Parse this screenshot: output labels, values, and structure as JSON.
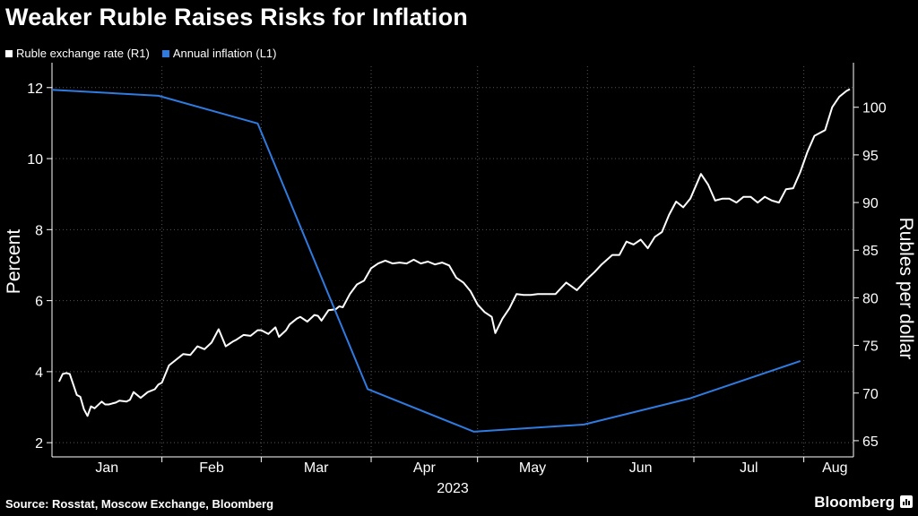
{
  "header": {
    "title": "Weaker Ruble Raises Risks for Inflation"
  },
  "footer": {
    "source": "Source: Rosstat, Moscow Exchange, Bloomberg",
    "brand": "Bloomberg"
  },
  "colors": {
    "background": "#000000",
    "ruble_series": "#ffffff",
    "inflation_series": "#2f7be0",
    "grid": "#555555"
  },
  "chart_data": {
    "type": "line",
    "title": "Weaker Ruble Raises Risks for Inflation",
    "x_axis": {
      "ticks": [
        "Jan",
        "Feb",
        "Mar",
        "Apr",
        "May",
        "Jun",
        "Jul",
        "Aug"
      ],
      "sublabel": "2023",
      "range": [
        "2023-01-01",
        "2023-08-15"
      ]
    },
    "y_left": {
      "label": "Percent",
      "ticks": [
        2,
        4,
        6,
        8,
        10,
        12
      ],
      "range": [
        1.6,
        12.6
      ]
    },
    "y_right": {
      "label": "Rubles per dollar",
      "ticks": [
        65,
        70,
        75,
        80,
        85,
        90,
        95,
        100
      ],
      "range": [
        63.3,
        104.3
      ]
    },
    "grid": true,
    "legend_position": "top-left",
    "series": [
      {
        "name": "Ruble exchange rate (R1)",
        "axis": "right",
        "color": "#ffffff",
        "x": [
          "2023-01-03",
          "2023-01-04",
          "2023-01-05",
          "2023-01-06",
          "2023-01-08",
          "2023-01-09",
          "2023-01-10",
          "2023-01-11",
          "2023-01-12",
          "2023-01-13",
          "2023-01-15",
          "2023-01-16",
          "2023-01-17",
          "2023-01-18",
          "2023-01-19",
          "2023-01-20",
          "2023-01-22",
          "2023-01-23",
          "2023-01-24",
          "2023-01-26",
          "2023-01-28",
          "2023-01-30",
          "2023-01-31",
          "2023-02-01",
          "2023-02-03",
          "2023-02-05",
          "2023-02-07",
          "2023-02-09",
          "2023-02-11",
          "2023-02-13",
          "2023-02-15",
          "2023-02-17",
          "2023-02-19",
          "2023-02-21",
          "2023-02-22",
          "2023-02-24",
          "2023-02-26",
          "2023-02-28",
          "2023-03-01",
          "2023-03-03",
          "2023-03-05",
          "2023-03-06",
          "2023-03-08",
          "2023-03-09",
          "2023-03-11",
          "2023-03-12",
          "2023-03-14",
          "2023-03-16",
          "2023-03-17",
          "2023-03-18",
          "2023-03-20",
          "2023-03-22",
          "2023-03-23",
          "2023-03-24",
          "2023-03-26",
          "2023-03-28",
          "2023-03-30",
          "2023-04-01",
          "2023-04-03",
          "2023-04-05",
          "2023-04-07",
          "2023-04-09",
          "2023-04-11",
          "2023-04-13",
          "2023-04-15",
          "2023-04-17",
          "2023-04-19",
          "2023-04-21",
          "2023-04-23",
          "2023-04-25",
          "2023-04-27",
          "2023-04-29",
          "2023-05-01",
          "2023-05-03",
          "2023-05-05",
          "2023-05-06",
          "2023-05-08",
          "2023-05-10",
          "2023-05-12",
          "2023-05-14",
          "2023-05-16",
          "2023-05-18",
          "2023-05-20",
          "2023-05-23",
          "2023-05-26",
          "2023-05-29",
          "2023-06-01",
          "2023-06-03",
          "2023-06-05",
          "2023-06-08",
          "2023-06-10",
          "2023-06-12",
          "2023-06-14",
          "2023-06-16",
          "2023-06-18",
          "2023-06-20",
          "2023-06-22",
          "2023-06-24",
          "2023-06-26",
          "2023-06-28",
          "2023-06-30",
          "2023-07-03",
          "2023-07-05",
          "2023-07-07",
          "2023-07-09",
          "2023-07-11",
          "2023-07-13",
          "2023-07-15",
          "2023-07-17",
          "2023-07-19",
          "2023-07-21",
          "2023-07-23",
          "2023-07-25",
          "2023-07-27",
          "2023-07-29",
          "2023-07-31",
          "2023-08-02",
          "2023-08-04",
          "2023-08-06",
          "2023-08-07",
          "2023-08-09",
          "2023-08-11",
          "2023-08-13",
          "2023-08-14"
        ],
        "values": [
          71.2,
          72.0,
          72.1,
          72.0,
          69.8,
          69.6,
          68.3,
          67.6,
          68.6,
          68.4,
          69.1,
          68.8,
          68.8,
          68.9,
          69.0,
          69.2,
          69.1,
          69.3,
          70.1,
          69.5,
          70.1,
          70.4,
          70.9,
          71.1,
          72.9,
          73.5,
          74.1,
          74.0,
          74.9,
          74.6,
          75.3,
          76.7,
          74.9,
          75.4,
          75.6,
          76.1,
          76.0,
          76.6,
          76.6,
          76.2,
          76.9,
          75.9,
          76.6,
          77.2,
          77.8,
          78.0,
          77.5,
          78.2,
          78.1,
          77.6,
          78.7,
          78.8,
          79.1,
          79.0,
          80.4,
          81.4,
          81.8,
          83.1,
          83.6,
          83.9,
          83.6,
          83.7,
          83.6,
          84.0,
          83.6,
          83.8,
          83.5,
          83.7,
          83.4,
          82.1,
          81.6,
          80.7,
          79.3,
          78.5,
          78.0,
          76.3,
          77.8,
          78.9,
          80.4,
          80.3,
          80.3,
          80.4,
          80.4,
          80.4,
          81.6,
          80.8,
          82.0,
          82.7,
          83.5,
          84.5,
          84.5,
          85.9,
          85.6,
          86.1,
          85.2,
          86.4,
          86.9,
          88.7,
          90.1,
          89.5,
          90.4,
          93.0,
          91.9,
          90.2,
          90.4,
          90.4,
          90.0,
          90.6,
          90.6,
          90.0,
          90.6,
          90.2,
          90.0,
          91.4,
          91.5,
          93.2,
          95.3,
          97.0,
          97.4,
          97.6,
          100.0,
          101.1,
          101.7,
          101.9
        ]
      },
      {
        "name": "Annual inflation (L1)",
        "axis": "left",
        "color": "#2f7be0",
        "x": [
          "2023-01-01",
          "2023-01-31",
          "2023-02-28",
          "2023-03-31",
          "2023-04-30",
          "2023-05-31",
          "2023-06-30",
          "2023-07-31"
        ],
        "values": [
          11.94,
          11.77,
          10.99,
          3.51,
          2.31,
          2.51,
          3.25,
          4.3
        ]
      }
    ]
  }
}
